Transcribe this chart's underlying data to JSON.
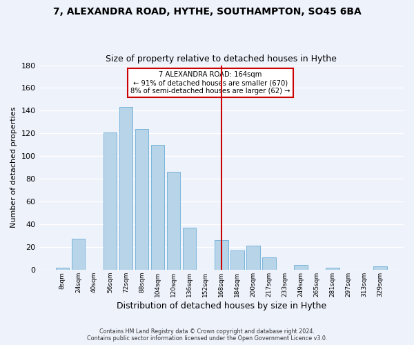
{
  "title": "7, ALEXANDRA ROAD, HYTHE, SOUTHAMPTON, SO45 6BA",
  "subtitle": "Size of property relative to detached houses in Hythe",
  "xlabel": "Distribution of detached houses by size in Hythe",
  "ylabel": "Number of detached properties",
  "bar_labels": [
    "8sqm",
    "24sqm",
    "40sqm",
    "56sqm",
    "72sqm",
    "88sqm",
    "104sqm",
    "120sqm",
    "136sqm",
    "152sqm",
    "168sqm",
    "184sqm",
    "200sqm",
    "217sqm",
    "233sqm",
    "249sqm",
    "265sqm",
    "281sqm",
    "297sqm",
    "313sqm",
    "329sqm"
  ],
  "bar_values": [
    2,
    27,
    0,
    121,
    143,
    124,
    110,
    86,
    37,
    0,
    26,
    17,
    21,
    11,
    0,
    4,
    0,
    2,
    0,
    0,
    3
  ],
  "bar_color": "#b8d4e8",
  "bar_edge_color": "#6baed6",
  "ylim": [
    0,
    180
  ],
  "yticks": [
    0,
    20,
    40,
    60,
    80,
    100,
    120,
    140,
    160,
    180
  ],
  "vline_index": 10,
  "vline_color": "#cc0000",
  "annotation_title": "7 ALEXANDRA ROAD: 164sqm",
  "annotation_line1": "← 91% of detached houses are smaller (670)",
  "annotation_line2": "8% of semi-detached houses are larger (62) →",
  "annotation_box_color": "#ffffff",
  "annotation_box_edge": "#cc0000",
  "footer_line1": "Contains HM Land Registry data © Crown copyright and database right 2024.",
  "footer_line2": "Contains public sector information licensed under the Open Government Licence v3.0.",
  "background_color": "#eef2fb",
  "grid_color": "#ffffff",
  "title_fontsize": 10,
  "subtitle_fontsize": 9
}
